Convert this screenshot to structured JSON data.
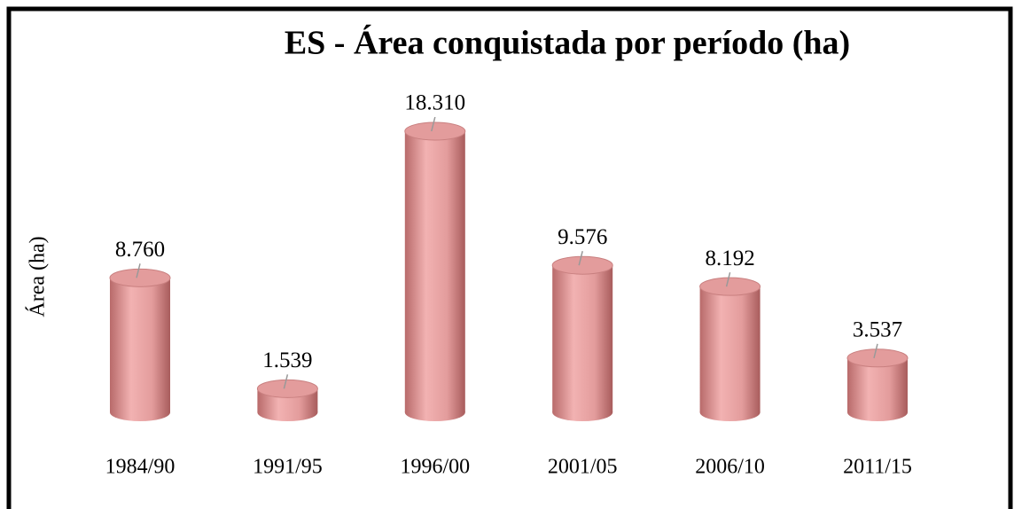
{
  "chart_data": {
    "type": "bar",
    "title": "ES -  Área conquistada por período (ha)",
    "y_label": "Área (ha)",
    "categories": [
      "1984/90",
      "1991/95",
      "1996/00",
      "2001/05",
      "2006/10",
      "2011/15"
    ],
    "values": [
      8760,
      1539,
      18310,
      9576,
      8192,
      3537
    ],
    "value_labels": [
      "8.760",
      "1.539",
      "18.310",
      "9.576",
      "8.192",
      "3.537"
    ],
    "color": "#e39c9c"
  }
}
